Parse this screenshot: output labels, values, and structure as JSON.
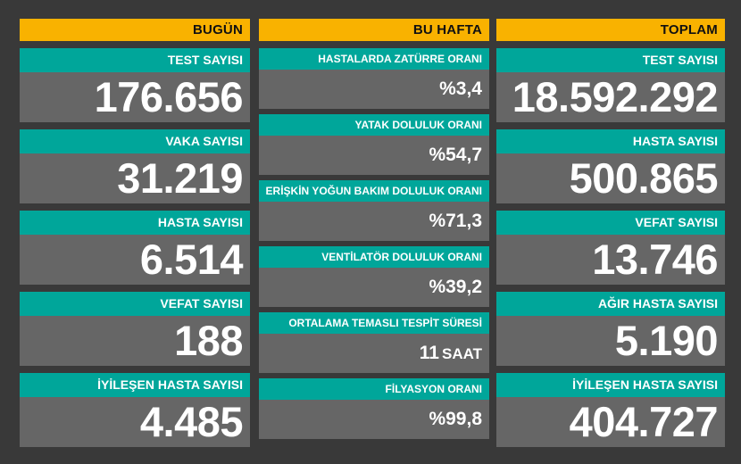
{
  "columns": {
    "today": {
      "header": "BUGÜN",
      "cards": [
        {
          "label": "TEST SAYISI",
          "value": "176.656"
        },
        {
          "label": "VAKA SAYISI",
          "value": "31.219"
        },
        {
          "label": "HASTA SAYISI",
          "value": "6.514"
        },
        {
          "label": "VEFAT SAYISI",
          "value": "188"
        },
        {
          "label": "İYİLEŞEN HASTA SAYISI",
          "value": "4.485"
        }
      ]
    },
    "week": {
      "header": "BU HAFTA",
      "cards": [
        {
          "label": "HASTALARDA ZATÜRRE ORANI",
          "prefix": "%",
          "value": "3,4"
        },
        {
          "label": "YATAK DOLULUK ORANI",
          "prefix": "%",
          "value": "54,7"
        },
        {
          "label": "ERİŞKİN YOĞUN BAKIM DOLULUK ORANI",
          "prefix": "%",
          "value": "71,3"
        },
        {
          "label": "VENTİLATÖR DOLULUK ORANI",
          "prefix": "%",
          "value": "39,2"
        },
        {
          "label": "ORTALAMA TEMASLI TESPİT SÜRESİ",
          "value": "11",
          "unit": "SAAT"
        },
        {
          "label": "FİLYASYON ORANI",
          "prefix": "%",
          "value": "99,8"
        }
      ]
    },
    "total": {
      "header": "TOPLAM",
      "cards": [
        {
          "label": "TEST SAYISI",
          "value": "18.592.292"
        },
        {
          "label": "HASTA SAYISI",
          "value": "500.865"
        },
        {
          "label": "VEFAT SAYISI",
          "value": "13.746"
        },
        {
          "label": "AĞIR HASTA SAYISI",
          "value": "5.190"
        },
        {
          "label": "İYİLEŞEN HASTA SAYISI",
          "value": "404.727"
        }
      ]
    }
  },
  "colors": {
    "background": "#393939",
    "header": "#f9b200",
    "label": "#00a69a",
    "card": "#666666",
    "text": "#ffffff"
  }
}
